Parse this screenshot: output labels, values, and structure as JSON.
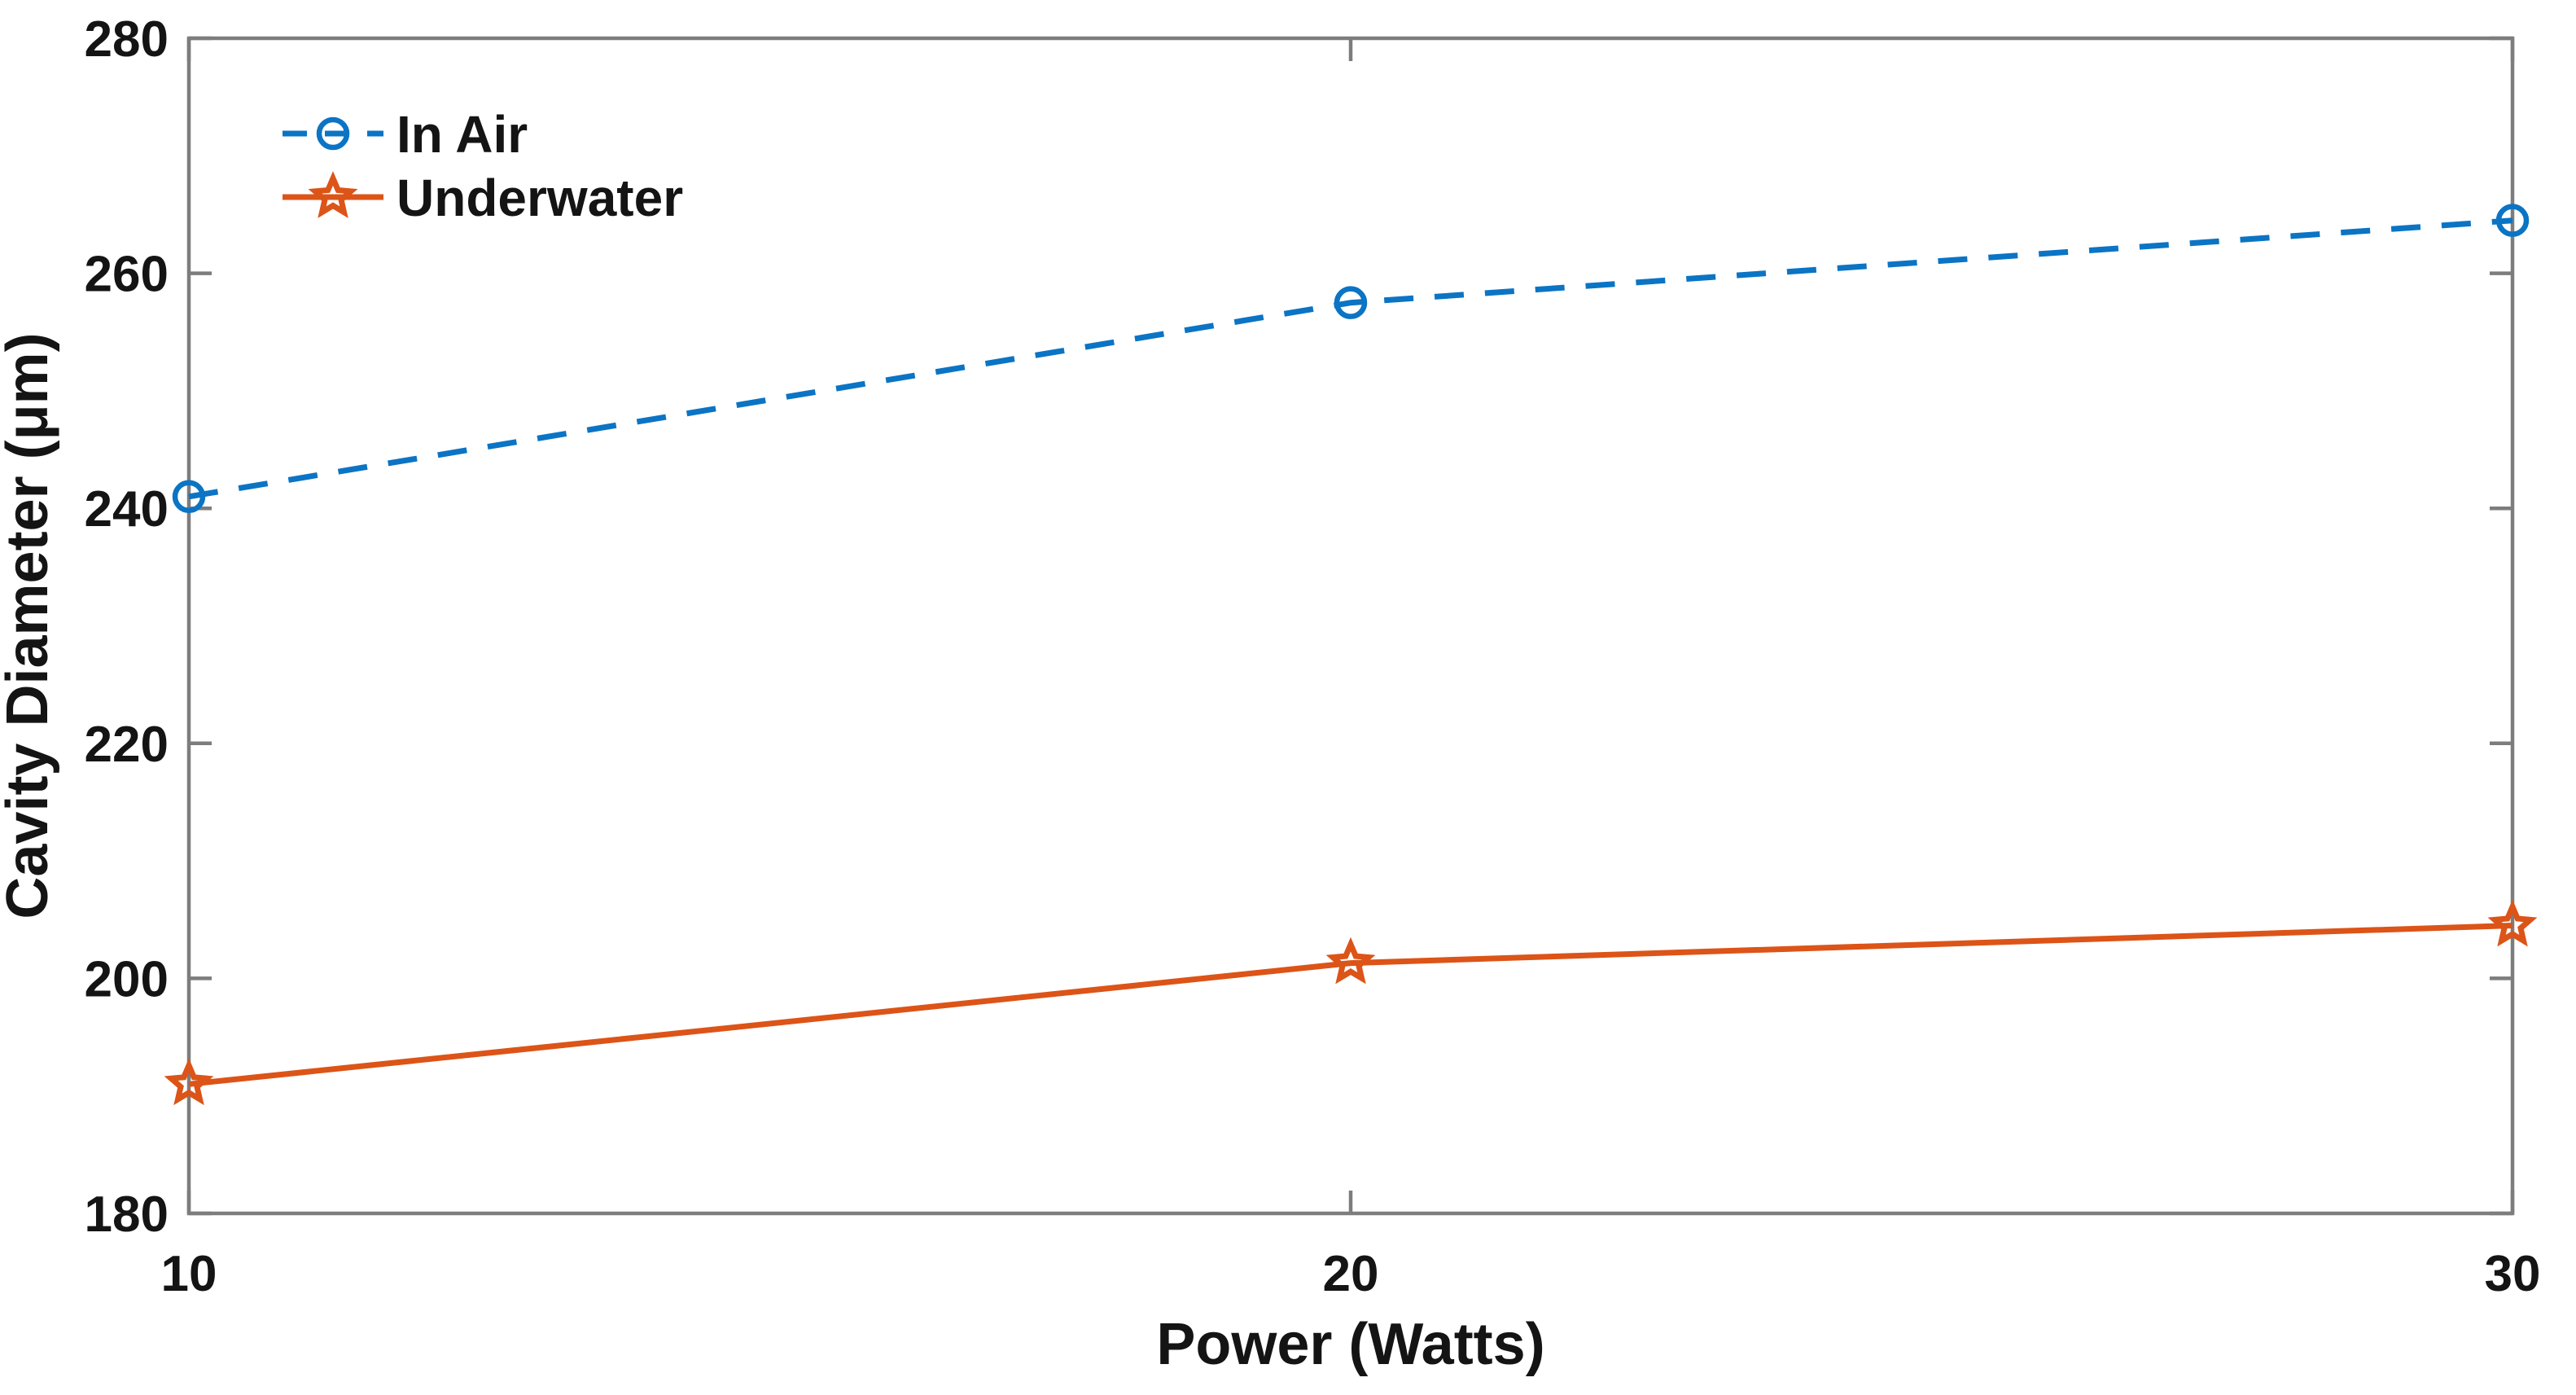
{
  "chart_data": {
    "type": "line",
    "title": "",
    "xlabel": "Power (Watts)",
    "ylabel": "Cavity Diameter (μm)",
    "x": [
      10,
      20,
      30
    ],
    "x_ticks": [
      10,
      20,
      30
    ],
    "x_tick_labels": [
      "10",
      "20",
      "30"
    ],
    "y_ticks": [
      180,
      200,
      220,
      240,
      260,
      280
    ],
    "y_tick_labels": [
      "180",
      "200",
      "220",
      "240",
      "260",
      "280"
    ],
    "xlim": [
      10,
      30
    ],
    "ylim": [
      180,
      280
    ],
    "grid": false,
    "legend_position": "upper-left",
    "series": [
      {
        "name": "In Air",
        "values": [
          241,
          257.5,
          264.5
        ],
        "color": "#0b74c4",
        "line_style": "dashed",
        "marker": "circle"
      },
      {
        "name": "Underwater",
        "values": [
          191,
          201.3,
          204.5
        ],
        "color": "#dc5418",
        "line_style": "solid",
        "marker": "pentagram"
      }
    ],
    "colors": {
      "axis": "#7d7d7d",
      "text": "#141414",
      "background": "#ffffff"
    }
  }
}
